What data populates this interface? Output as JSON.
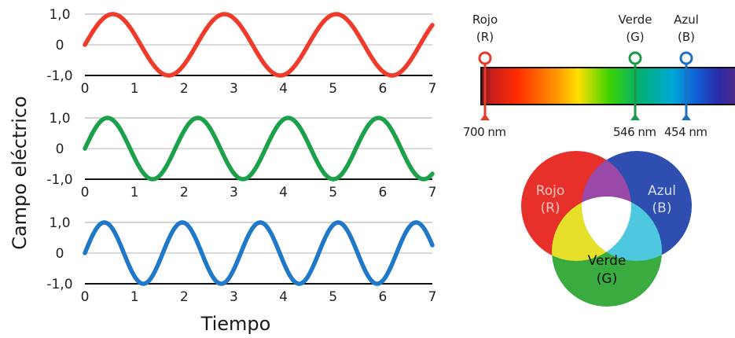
{
  "chart_data": [
    {
      "type": "line",
      "ylabel": "Campo eléctrico",
      "xlabel": "Tiempo",
      "ylim": [
        -1.0,
        1.0
      ],
      "xlim": [
        0,
        7
      ],
      "x_ticks": [
        "0",
        "1",
        "2",
        "3",
        "4",
        "5",
        "6",
        "7"
      ],
      "y_ticks": [
        "1,0",
        "0",
        "-1,0"
      ],
      "grid": true,
      "series": [
        {
          "color": "#f03a2a",
          "function": "sin",
          "period": 2.25
        },
        {
          "color": "#1aa14a",
          "function": "sin",
          "period": 1.82
        },
        {
          "color": "#1f78c8",
          "function": "sin",
          "period": 1.57
        }
      ]
    }
  ],
  "spectrum": {
    "markers": [
      {
        "name": "Rojo",
        "code": "(R)",
        "wavelength": "700 nm",
        "color": "#e53a2a"
      },
      {
        "name": "Verde",
        "code": "(G)",
        "wavelength": "546 nm",
        "color": "#1a9a48"
      },
      {
        "name": "Azul",
        "code": "(B)",
        "wavelength": "454 nm",
        "color": "#1f6fc0"
      }
    ]
  },
  "venn": {
    "red": {
      "name": "Rojo",
      "code": "(R)",
      "color": "#e8302a"
    },
    "blue": {
      "name": "Azul",
      "code": "(B)",
      "color": "#2f4fb0"
    },
    "green": {
      "name": "Verde",
      "code": "(G)",
      "color": "#3aab3e"
    },
    "overlap_colors": {
      "red_blue": "#9b49a8",
      "red_green": "#e7e02a",
      "green_blue": "#4dc8df",
      "center": "#ffffff"
    }
  }
}
